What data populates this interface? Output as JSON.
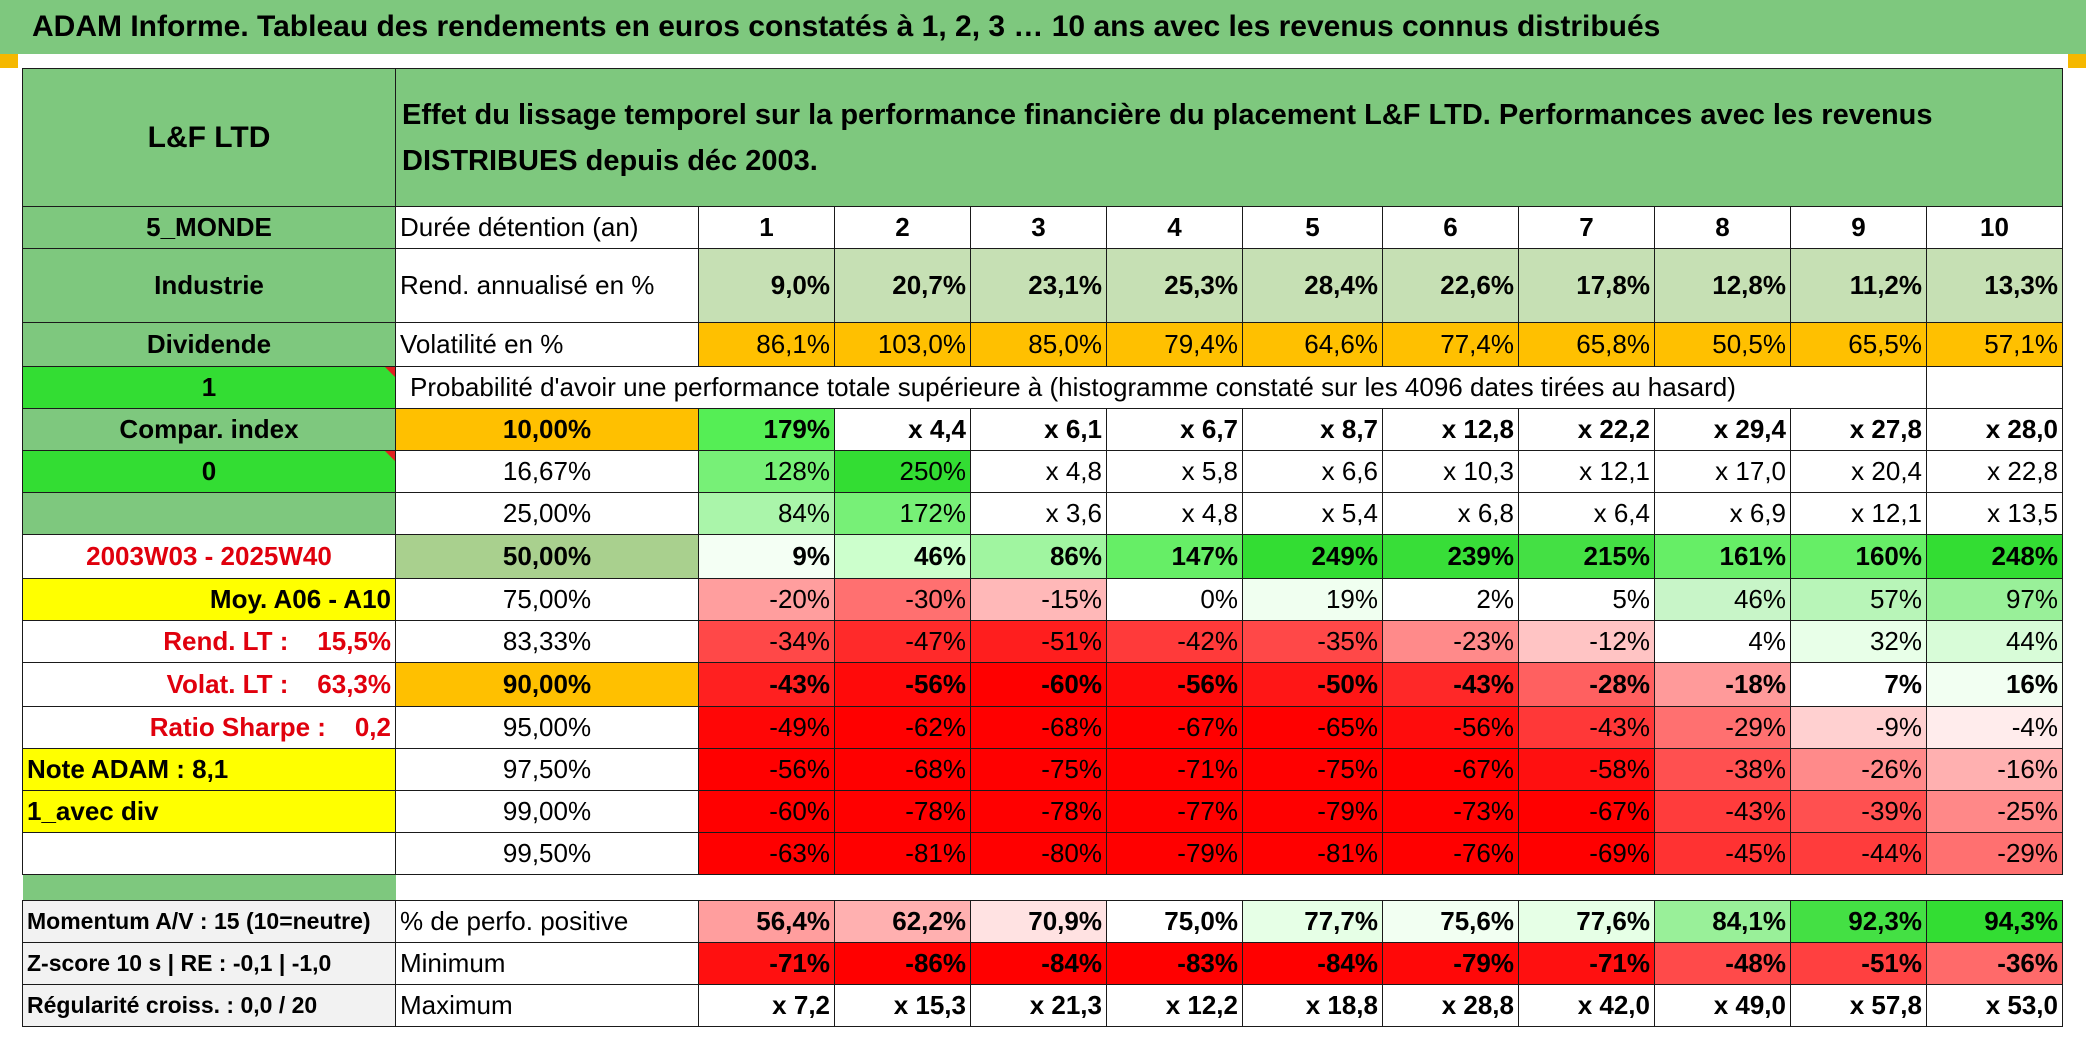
{
  "title": "ADAM Informe. Tableau des rendements en euros constatés à 1, 2, 3 … 10 ans avec les revenus connus distribués",
  "header": {
    "fund_name": "L&F LTD",
    "description": "Effet du lissage temporel sur la performance financière du placement L&F LTD. Performances avec les revenus DISTRIBUES depuis déc 2003."
  },
  "left_labels": {
    "region": "5_MONDE",
    "sector": "Industrie",
    "dividend": "Dividende",
    "one": "1",
    "compar_index": "Compar. index",
    "zero": "0",
    "period": "2003W03 - 2025W40",
    "moy": "Moy. A06 - A10",
    "rend_lt": "Rend. LT :    15,5%",
    "volat_lt": "Volat. LT :    63,3%",
    "ratio_sharpe": "Ratio Sharpe :    0,2",
    "note_adam": "Note ADAM : 8,1",
    "avec_div": "1_avec div",
    "momentum": "Momentum A/V : 15 (10=neutre)",
    "zscore": "Z-score 10 s | RE : -0,1 | -1,0",
    "regularite": "Régularité croiss. : 0,0 / 20"
  },
  "row_labels": {
    "duree": "Durée détention (an)",
    "rend": "Rend. annualisé en %",
    "volat": "Volatilité en %",
    "proba": "Probabilité d'avoir une performance totale supérieure à (histogramme constaté sur les 4096 dates tirées au hasard)",
    "pct_pos": "% de perfo. positive",
    "minimum": "Minimum",
    "maximum": "Maximum"
  },
  "years": [
    "1",
    "2",
    "3",
    "4",
    "5",
    "6",
    "7",
    "8",
    "9",
    "10"
  ],
  "rend": [
    "9,0%",
    "20,7%",
    "23,1%",
    "25,3%",
    "28,4%",
    "22,6%",
    "17,8%",
    "12,8%",
    "11,2%",
    "13,3%"
  ],
  "volat": [
    "86,1%",
    "103,0%",
    "85,0%",
    "79,4%",
    "64,6%",
    "77,4%",
    "65,8%",
    "50,5%",
    "65,5%",
    "57,1%"
  ],
  "quantiles": [
    {
      "label": "10,00%",
      "values": [
        "179%",
        "x 4,4",
        "x 6,1",
        "x 6,7",
        "x 8,7",
        "x 12,8",
        "x 22,2",
        "x 29,4",
        "x 27,8",
        "x 28,0"
      ]
    },
    {
      "label": "16,67%",
      "values": [
        "128%",
        "250%",
        "x 4,8",
        "x 5,8",
        "x 6,6",
        "x 10,3",
        "x 12,1",
        "x 17,0",
        "x 20,4",
        "x 22,8"
      ]
    },
    {
      "label": "25,00%",
      "values": [
        "84%",
        "172%",
        "x 3,6",
        "x 4,8",
        "x 5,4",
        "x 6,8",
        "x 6,4",
        "x 6,9",
        "x 12,1",
        "x 13,5"
      ]
    },
    {
      "label": "50,00%",
      "values": [
        "9%",
        "46%",
        "86%",
        "147%",
        "249%",
        "239%",
        "215%",
        "161%",
        "160%",
        "248%"
      ]
    },
    {
      "label": "75,00%",
      "values": [
        "-20%",
        "-30%",
        "-15%",
        "0%",
        "19%",
        "2%",
        "5%",
        "46%",
        "57%",
        "97%"
      ]
    },
    {
      "label": "83,33%",
      "values": [
        "-34%",
        "-47%",
        "-51%",
        "-42%",
        "-35%",
        "-23%",
        "-12%",
        "4%",
        "32%",
        "44%"
      ]
    },
    {
      "label": "90,00%",
      "values": [
        "-43%",
        "-56%",
        "-60%",
        "-56%",
        "-50%",
        "-43%",
        "-28%",
        "-18%",
        "7%",
        "16%"
      ]
    },
    {
      "label": "95,00%",
      "values": [
        "-49%",
        "-62%",
        "-68%",
        "-67%",
        "-65%",
        "-56%",
        "-43%",
        "-29%",
        "-9%",
        "-4%"
      ]
    },
    {
      "label": "97,50%",
      "values": [
        "-56%",
        "-68%",
        "-75%",
        "-71%",
        "-75%",
        "-67%",
        "-58%",
        "-38%",
        "-26%",
        "-16%"
      ]
    },
    {
      "label": "99,00%",
      "values": [
        "-60%",
        "-78%",
        "-78%",
        "-77%",
        "-79%",
        "-73%",
        "-67%",
        "-43%",
        "-39%",
        "-25%"
      ]
    },
    {
      "label": "99,50%",
      "values": [
        "-63%",
        "-81%",
        "-80%",
        "-79%",
        "-81%",
        "-76%",
        "-69%",
        "-45%",
        "-44%",
        "-29%"
      ]
    }
  ],
  "pct_pos": [
    "56,4%",
    "62,2%",
    "70,9%",
    "75,0%",
    "77,7%",
    "75,6%",
    "77,6%",
    "84,1%",
    "92,3%",
    "94,3%"
  ],
  "minimum": [
    "-71%",
    "-86%",
    "-84%",
    "-83%",
    "-84%",
    "-79%",
    "-71%",
    "-48%",
    "-51%",
    "-36%"
  ],
  "maximum": [
    "x 7,2",
    "x 15,3",
    "x 21,3",
    "x 12,2",
    "x 18,8",
    "x 28,8",
    "x 42,0",
    "x 49,0",
    "x 57,8",
    "x 53,0"
  ],
  "colors": {
    "title_bg": "#7ec87e",
    "header_green": "#7ec87e",
    "rend_bg": "#c6e0b4",
    "volat_bg": "#ffc000",
    "bright_green": "#33dd33",
    "yellow": "#ffff00",
    "red_text": "#e0000d"
  }
}
